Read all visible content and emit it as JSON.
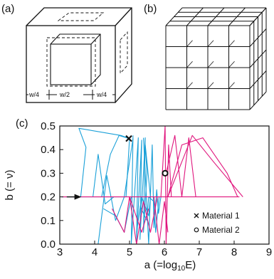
{
  "panels": {
    "a": {
      "label": "(a)",
      "dims": [
        "w/4",
        "w/2",
        "w/4"
      ]
    },
    "b": {
      "label": "(b)"
    },
    "c": {
      "label": "(c)"
    }
  },
  "chart_data": {
    "type": "line",
    "title": "",
    "xlabel": "a (=log",
    "xlabel_sub": "10",
    "xlabel_tail": "E)",
    "ylabel": "b (= ν)",
    "xlim": [
      3,
      9
    ],
    "ylim": [
      0.0,
      0.5
    ],
    "x_ticks": [
      "3",
      "4",
      "5",
      "6",
      "7",
      "8",
      "9"
    ],
    "y_ticks": [
      "0.0",
      "0.1",
      "0.2",
      "0.3",
      "0.4",
      "0.5"
    ],
    "colors": {
      "series1": "#1aa0d8",
      "series2": "#e0157d"
    },
    "legend_position": "bottom-right",
    "series": [
      {
        "name": "Material 1",
        "color": "#1aa0d8",
        "marker": "x",
        "point": [
          4.98,
          0.447
        ],
        "paths": [
          [
            [
              3.05,
              0.2
            ],
            [
              4.9,
              0.2
            ],
            [
              5.0,
              0.447
            ]
          ],
          [
            [
              3.6,
              0.2
            ],
            [
              3.75,
              0.41
            ],
            [
              3.55,
              0.49
            ],
            [
              4.75,
              0.46
            ],
            [
              5.0,
              0.447
            ]
          ],
          [
            [
              4.2,
              0.2
            ],
            [
              4.45,
              0.38
            ],
            [
              4.7,
              0.46
            ],
            [
              4.98,
              0.447
            ]
          ],
          [
            [
              4.1,
              0.0
            ],
            [
              4.35,
              0.29
            ],
            [
              4.6,
              0.1
            ],
            [
              4.85,
              0.2
            ],
            [
              5.1,
              0.447
            ]
          ],
          [
            [
              3.95,
              0.2
            ],
            [
              4.1,
              0.38
            ],
            [
              4.3,
              0.17
            ],
            [
              4.55,
              0.2
            ]
          ],
          [
            [
              4.25,
              0.15
            ],
            [
              4.6,
              0.12
            ],
            [
              4.85,
              0.05
            ],
            [
              5.05,
              0.2
            ]
          ],
          [
            [
              5.1,
              0.46
            ],
            [
              5.05,
              0.0
            ],
            [
              5.25,
              0.45
            ],
            [
              5.2,
              0.0
            ],
            [
              5.35,
              0.44
            ],
            [
              5.3,
              0.02
            ],
            [
              5.45,
              0.45
            ],
            [
              5.4,
              0.05
            ],
            [
              5.5,
              0.3
            ],
            [
              5.45,
              0.42
            ],
            [
              5.6,
              0.2
            ]
          ],
          [
            [
              5.3,
              0.16
            ],
            [
              5.5,
              0.1
            ],
            [
              5.55,
              0.2
            ],
            [
              5.7,
              0.18
            ],
            [
              5.75,
              0.05
            ],
            [
              5.85,
              0.2
            ]
          ],
          [
            [
              5.4,
              0.45
            ],
            [
              5.55,
              0.0
            ],
            [
              5.65,
              0.42
            ],
            [
              5.7,
              0.07
            ],
            [
              5.78,
              0.23
            ],
            [
              5.83,
              0.13
            ],
            [
              5.9,
              0.2
            ]
          ],
          [
            [
              5.2,
              0.05
            ],
            [
              5.35,
              0.2
            ],
            [
              5.55,
              0.12
            ],
            [
              5.6,
              0.2
            ]
          ]
        ]
      },
      {
        "name": "Material 2",
        "color": "#e0157d",
        "marker": "o",
        "point": [
          6.02,
          0.3
        ],
        "paths": [
          [
            [
              3.05,
              0.2
            ],
            [
              8.15,
              0.2
            ]
          ],
          [
            [
              5.0,
              0.2
            ],
            [
              5.2,
              0.0
            ],
            [
              5.4,
              0.18
            ],
            [
              5.6,
              0.05
            ],
            [
              5.8,
              0.2
            ]
          ],
          [
            [
              5.9,
              0.2
            ],
            [
              6.02,
              0.5
            ],
            [
              6.05,
              0.0
            ],
            [
              6.12,
              0.42
            ],
            [
              6.2,
              0.2
            ]
          ],
          [
            [
              6.05,
              0.3
            ],
            [
              6.3,
              0.46
            ],
            [
              6.5,
              0.2
            ],
            [
              6.7,
              0.45
            ],
            [
              6.9,
              0.2
            ]
          ],
          [
            [
              6.1,
              0.2
            ],
            [
              6.8,
              0.46
            ],
            [
              7.4,
              0.35
            ],
            [
              8.25,
              0.2
            ]
          ],
          [
            [
              6.1,
              0.2
            ],
            [
              6.5,
              0.42
            ],
            [
              7.1,
              0.45
            ],
            [
              7.8,
              0.3
            ],
            [
              8.1,
              0.2
            ]
          ],
          [
            [
              4.5,
              0.15
            ],
            [
              4.85,
              0.05
            ],
            [
              5.0,
              0.2
            ],
            [
              5.35,
              0.05
            ],
            [
              5.55,
              0.15
            ]
          ],
          [
            [
              5.7,
              0.2
            ],
            [
              5.85,
              0.0
            ],
            [
              6.0,
              0.18
            ],
            [
              6.1,
              0.05
            ]
          ]
        ]
      }
    ]
  }
}
